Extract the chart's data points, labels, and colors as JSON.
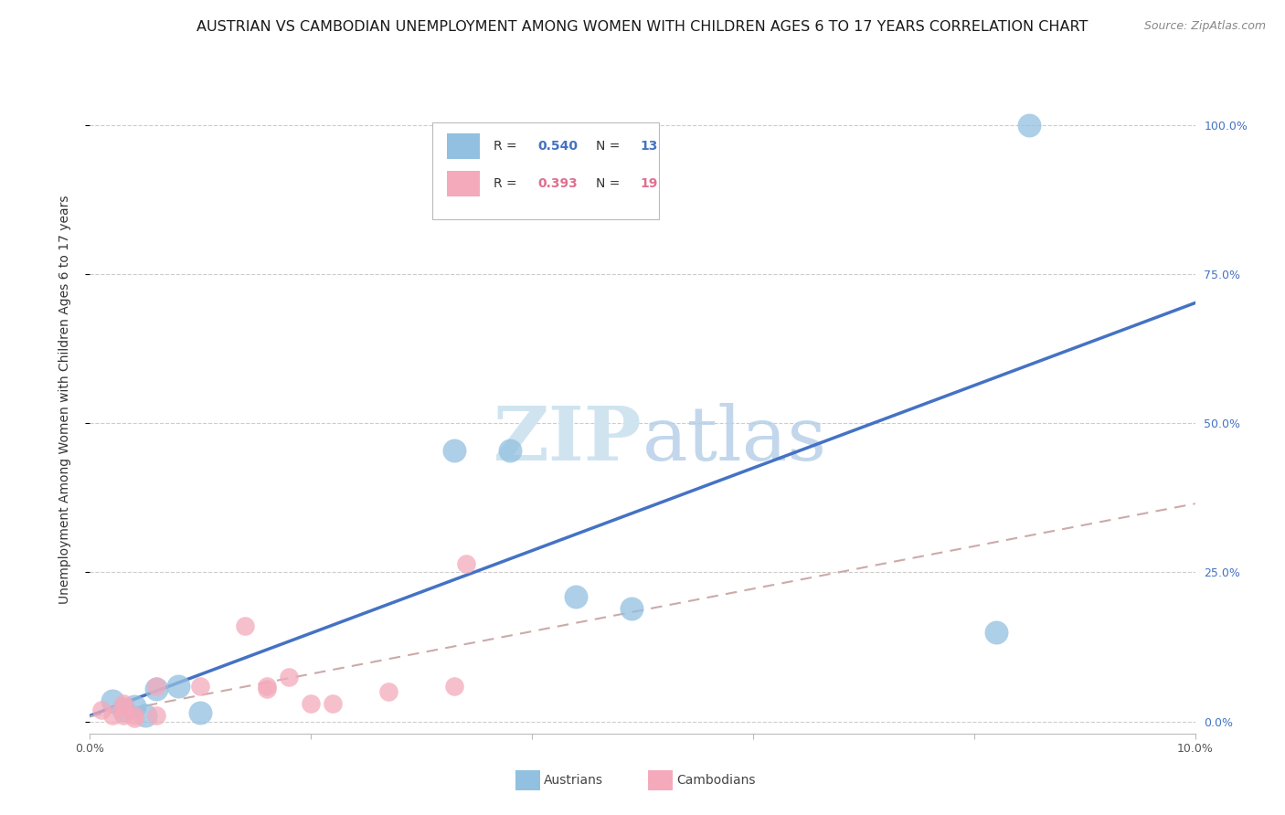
{
  "title": "AUSTRIAN VS CAMBODIAN UNEMPLOYMENT AMONG WOMEN WITH CHILDREN AGES 6 TO 17 YEARS CORRELATION CHART",
  "source": "Source: ZipAtlas.com",
  "ylabel": "Unemployment Among Women with Children Ages 6 to 17 years",
  "xlim": [
    0.0,
    0.1
  ],
  "ylim": [
    -0.02,
    1.1
  ],
  "yticks": [
    0.0,
    0.25,
    0.5,
    0.75,
    1.0
  ],
  "ytick_labels": [
    "0.0%",
    "25.0%",
    "50.0%",
    "75.0%",
    "100.0%"
  ],
  "xticks": [
    0.0,
    0.02,
    0.04,
    0.06,
    0.08,
    0.1
  ],
  "xtick_labels": [
    "0.0%",
    "",
    "",
    "",
    "",
    "10.0%"
  ],
  "austrians_x": [
    0.002,
    0.003,
    0.004,
    0.005,
    0.006,
    0.008,
    0.01,
    0.033,
    0.038,
    0.044,
    0.049,
    0.082,
    0.085
  ],
  "austrians_y": [
    0.035,
    0.02,
    0.025,
    0.01,
    0.055,
    0.06,
    0.015,
    0.455,
    0.455,
    0.21,
    0.19,
    0.15,
    1.0
  ],
  "cambodians_x": [
    0.001,
    0.002,
    0.003,
    0.003,
    0.003,
    0.004,
    0.004,
    0.006,
    0.006,
    0.01,
    0.014,
    0.016,
    0.016,
    0.018,
    0.02,
    0.022,
    0.027,
    0.033,
    0.034
  ],
  "cambodians_y": [
    0.02,
    0.01,
    0.01,
    0.025,
    0.03,
    0.01,
    0.005,
    0.06,
    0.01,
    0.06,
    0.16,
    0.06,
    0.055,
    0.075,
    0.03,
    0.03,
    0.05,
    0.06,
    0.265
  ],
  "austrians_color": "#92C0E0",
  "cambodians_color": "#F4AABB",
  "austrians_line_color": "#4472C4",
  "cambodians_line_color": "#E07090",
  "cambodians_line_dash_color": "#CCAAAA",
  "R_austrians": 0.54,
  "N_austrians": 13,
  "R_cambodians": 0.393,
  "N_cambodians": 19,
  "watermark_zip": "ZIP",
  "watermark_atlas": "atlas",
  "watermark_color": "#D0E4F0",
  "title_fontsize": 11.5,
  "source_fontsize": 9,
  "axis_label_fontsize": 10,
  "tick_fontsize": 9,
  "right_ytick_color": "#4472C4"
}
